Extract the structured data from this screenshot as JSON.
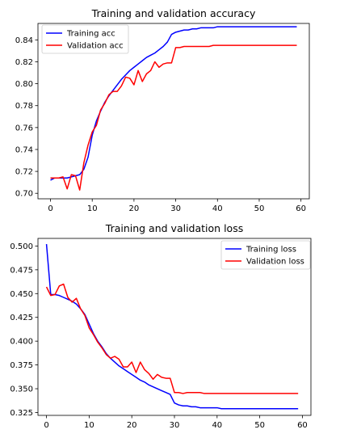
{
  "chart_data": [
    {
      "type": "line",
      "title": "Training and validation accuracy",
      "xlabel": "",
      "ylabel": "",
      "xlim": [
        -3,
        62
      ],
      "ylim": [
        0.695,
        0.855
      ],
      "xticks": [
        0,
        10,
        20,
        30,
        40,
        50,
        60
      ],
      "yticks": [
        0.7,
        0.72,
        0.74,
        0.76,
        0.78,
        0.8,
        0.82,
        0.84
      ],
      "ytick_labels": [
        "0.70",
        "0.72",
        "0.74",
        "0.76",
        "0.78",
        "0.80",
        "0.82",
        "0.84"
      ],
      "legend": "upper-left",
      "x": [
        0,
        1,
        2,
        3,
        4,
        5,
        6,
        7,
        8,
        9,
        10,
        11,
        12,
        13,
        14,
        15,
        16,
        17,
        18,
        19,
        20,
        21,
        22,
        23,
        24,
        25,
        26,
        27,
        28,
        29,
        30,
        31,
        32,
        33,
        34,
        35,
        36,
        37,
        38,
        39,
        40,
        41,
        42,
        43,
        44,
        45,
        46,
        47,
        48,
        49,
        50,
        51,
        52,
        53,
        54,
        55,
        56,
        57,
        58,
        59
      ],
      "series": [
        {
          "name": "Training acc",
          "color": "#0000ff",
          "values": [
            0.712,
            0.714,
            0.714,
            0.714,
            0.714,
            0.715,
            0.716,
            0.717,
            0.722,
            0.733,
            0.753,
            0.766,
            0.775,
            0.783,
            0.789,
            0.794,
            0.799,
            0.804,
            0.808,
            0.812,
            0.815,
            0.818,
            0.821,
            0.824,
            0.826,
            0.828,
            0.831,
            0.834,
            0.838,
            0.845,
            0.847,
            0.848,
            0.849,
            0.849,
            0.85,
            0.85,
            0.851,
            0.851,
            0.851,
            0.851,
            0.852,
            0.852,
            0.852,
            0.852,
            0.852,
            0.852,
            0.852,
            0.852,
            0.852,
            0.852,
            0.852,
            0.852,
            0.852,
            0.852,
            0.852,
            0.852,
            0.852,
            0.852,
            0.852,
            0.852
          ]
        },
        {
          "name": "Validation acc",
          "color": "#ff0000",
          "values": [
            0.714,
            0.714,
            0.714,
            0.715,
            0.704,
            0.717,
            0.716,
            0.703,
            0.728,
            0.744,
            0.756,
            0.762,
            0.776,
            0.782,
            0.79,
            0.793,
            0.793,
            0.798,
            0.806,
            0.805,
            0.799,
            0.812,
            0.802,
            0.809,
            0.812,
            0.82,
            0.815,
            0.818,
            0.819,
            0.819,
            0.833,
            0.833,
            0.834,
            0.834,
            0.834,
            0.834,
            0.834,
            0.834,
            0.834,
            0.835,
            0.835,
            0.835,
            0.835,
            0.835,
            0.835,
            0.835,
            0.835,
            0.835,
            0.835,
            0.835,
            0.835,
            0.835,
            0.835,
            0.835,
            0.835,
            0.835,
            0.835,
            0.835,
            0.835,
            0.835
          ]
        }
      ]
    },
    {
      "type": "line",
      "title": "Training and validation loss",
      "xlabel": "",
      "ylabel": "",
      "xlim": [
        -2,
        62
      ],
      "ylim": [
        0.322,
        0.508
      ],
      "xticks": [
        0,
        10,
        20,
        30,
        40,
        50,
        60
      ],
      "yticks": [
        0.325,
        0.35,
        0.375,
        0.4,
        0.425,
        0.45,
        0.475,
        0.5
      ],
      "ytick_labels": [
        "0.325",
        "0.350",
        "0.375",
        "0.400",
        "0.425",
        "0.450",
        "0.475",
        "0.500"
      ],
      "legend": "upper-right",
      "x": [
        0,
        1,
        2,
        3,
        4,
        5,
        6,
        7,
        8,
        9,
        10,
        11,
        12,
        13,
        14,
        15,
        16,
        17,
        18,
        19,
        20,
        21,
        22,
        23,
        24,
        25,
        26,
        27,
        28,
        29,
        30,
        31,
        32,
        33,
        34,
        35,
        36,
        37,
        38,
        39,
        40,
        41,
        42,
        43,
        44,
        45,
        46,
        47,
        48,
        49,
        50,
        51,
        52,
        53,
        54,
        55,
        56,
        57,
        58,
        59
      ],
      "series": [
        {
          "name": "Training loss",
          "color": "#0000ff",
          "values": [
            0.502,
            0.449,
            0.449,
            0.448,
            0.446,
            0.444,
            0.442,
            0.439,
            0.434,
            0.428,
            0.418,
            0.408,
            0.4,
            0.394,
            0.387,
            0.382,
            0.378,
            0.374,
            0.371,
            0.368,
            0.365,
            0.362,
            0.359,
            0.357,
            0.354,
            0.352,
            0.35,
            0.348,
            0.346,
            0.344,
            0.335,
            0.333,
            0.332,
            0.332,
            0.331,
            0.331,
            0.33,
            0.33,
            0.33,
            0.33,
            0.33,
            0.329,
            0.329,
            0.329,
            0.329,
            0.329,
            0.329,
            0.329,
            0.329,
            0.329,
            0.329,
            0.329,
            0.329,
            0.329,
            0.329,
            0.329,
            0.329,
            0.329,
            0.329,
            0.329
          ]
        },
        {
          "name": "Validation loss",
          "color": "#ff0000",
          "values": [
            0.457,
            0.448,
            0.449,
            0.458,
            0.46,
            0.446,
            0.441,
            0.445,
            0.434,
            0.427,
            0.414,
            0.407,
            0.399,
            0.393,
            0.386,
            0.382,
            0.384,
            0.381,
            0.373,
            0.373,
            0.378,
            0.367,
            0.378,
            0.37,
            0.366,
            0.36,
            0.365,
            0.362,
            0.361,
            0.361,
            0.346,
            0.346,
            0.345,
            0.346,
            0.346,
            0.346,
            0.346,
            0.345,
            0.345,
            0.345,
            0.345,
            0.345,
            0.345,
            0.345,
            0.345,
            0.345,
            0.345,
            0.345,
            0.345,
            0.345,
            0.345,
            0.345,
            0.345,
            0.345,
            0.345,
            0.345,
            0.345,
            0.345,
            0.345,
            0.345
          ]
        }
      ]
    }
  ]
}
